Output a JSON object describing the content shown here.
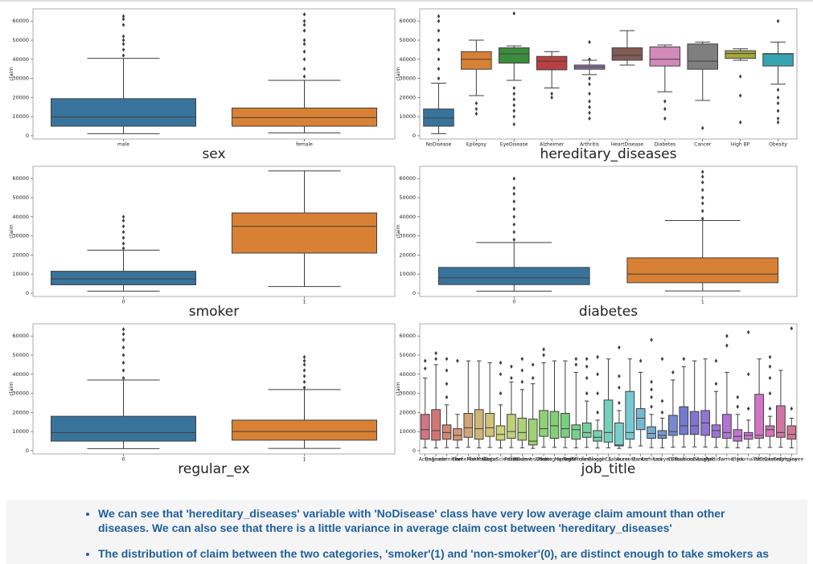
{
  "chart_data": [
    {
      "type": "box",
      "xlabel": "sex",
      "ylabel": "claim",
      "categories": [
        "male",
        "female"
      ],
      "min": [
        1100,
        1500
      ],
      "q1": [
        5000,
        5000
      ],
      "median": [
        9800,
        9500
      ],
      "q3": [
        19400,
        14500
      ],
      "max": [
        40500,
        29000
      ],
      "outliers": [
        [
          42000,
          45000,
          48000,
          50000,
          52000,
          58000,
          61000,
          62500
        ],
        [
          31000,
          35000,
          40000,
          44000,
          48000,
          50000,
          55000,
          58000,
          60000,
          63500
        ]
      ],
      "colors": [
        "#3274a1",
        "#e1812c"
      ],
      "ylim": [
        -1700,
        66400
      ],
      "yticks": [
        0,
        10000,
        20000,
        30000,
        40000,
        50000,
        60000
      ]
    },
    {
      "type": "box",
      "xlabel": "hereditary_diseases",
      "ylabel": "claim",
      "categories": [
        "NoDisease",
        "Epilepsy",
        "EyeDisease",
        "Alzheimer",
        "Arthritis",
        "HeartDisease",
        "Diabetes",
        "Cancer",
        "High BP",
        "Obesity"
      ],
      "min": [
        1100,
        21000,
        29000,
        25000,
        32000,
        37000,
        23000,
        18500,
        39500,
        27000
      ],
      "q1": [
        5000,
        34800,
        38000,
        34500,
        34800,
        39500,
        36500,
        34800,
        40500,
        36500
      ],
      "median": [
        9300,
        40000,
        42800,
        39000,
        36000,
        42000,
        40000,
        39000,
        43000,
        42800
      ],
      "q3": [
        14000,
        44000,
        46000,
        41500,
        37000,
        46000,
        46500,
        48000,
        44500,
        43000
      ],
      "max": [
        27500,
        50000,
        47000,
        44000,
        39500,
        55000,
        47500,
        49000,
        45500,
        49000
      ],
      "outliers": [
        [
          30000,
          35000,
          40000,
          45000,
          50000,
          55000,
          60000,
          62500
        ],
        [
          11500,
          14000,
          17000
        ],
        [
          6000,
          10000,
          13000,
          16000,
          19000,
          22000,
          25000,
          64000
        ],
        [
          20000,
          22000
        ],
        [
          9000,
          12000,
          15000,
          18000,
          22000,
          27000,
          30000,
          40000,
          49000
        ],
        [],
        [
          9000,
          14000,
          18000
        ],
        [
          4000
        ],
        [
          7000,
          21000,
          31000
        ],
        [
          7000,
          9000,
          13000,
          17000,
          20000,
          24000,
          60000
        ]
      ],
      "colors": [
        "#3274a1",
        "#e1812c",
        "#3a923a",
        "#c03d3e",
        "#9372b2",
        "#845b53",
        "#d684bd",
        "#7f7f7f",
        "#a9aa35",
        "#2ea8b6"
      ],
      "ylim": [
        -1700,
        66400
      ],
      "yticks": [
        0,
        10000,
        20000,
        30000,
        40000,
        50000,
        60000
      ]
    },
    {
      "type": "box",
      "xlabel": "smoker",
      "ylabel": "claim",
      "categories": [
        "0",
        "1"
      ],
      "min": [
        1100,
        3500
      ],
      "q1": [
        4400,
        21000
      ],
      "median": [
        7500,
        35000
      ],
      "q3": [
        11500,
        42000
      ],
      "max": [
        22500,
        64000
      ],
      "outliers": [
        [
          23500,
          26000,
          29000,
          32000,
          35000,
          38000,
          40000
        ],
        []
      ],
      "colors": [
        "#3274a1",
        "#e1812c"
      ],
      "ylim": [
        -1700,
        66400
      ],
      "yticks": [
        0,
        10000,
        20000,
        30000,
        40000,
        50000,
        60000
      ]
    },
    {
      "type": "box",
      "xlabel": "diabetes",
      "ylabel": "claim",
      "categories": [
        "0",
        "1"
      ],
      "min": [
        1100,
        1200
      ],
      "q1": [
        4500,
        5500
      ],
      "median": [
        8000,
        10000
      ],
      "q3": [
        13500,
        18500
      ],
      "max": [
        26500,
        38000
      ],
      "outliers": [
        [
          28000,
          32000,
          36000,
          40000,
          44000,
          48000,
          52000,
          55000,
          60000
        ],
        [
          39000,
          43000,
          47000,
          50000,
          54000,
          58000,
          61000,
          63500
        ]
      ],
      "colors": [
        "#3274a1",
        "#e1812c"
      ],
      "ylim": [
        -1700,
        66400
      ],
      "yticks": [
        0,
        10000,
        20000,
        30000,
        40000,
        50000,
        60000
      ]
    },
    {
      "type": "box",
      "xlabel": "regular_ex",
      "ylabel": "claim",
      "categories": [
        "0",
        "1"
      ],
      "min": [
        1100,
        1200
      ],
      "q1": [
        5000,
        5500
      ],
      "median": [
        9500,
        10000
      ],
      "q3": [
        18000,
        16000
      ],
      "max": [
        37000,
        32000
      ],
      "outliers": [
        [
          38000,
          42000,
          46000,
          50000,
          54000,
          58000,
          61000,
          63500
        ],
        [
          33000,
          36000,
          39000,
          42000,
          45000,
          47000,
          49000
        ]
      ],
      "colors": [
        "#3274a1",
        "#e1812c"
      ],
      "ylim": [
        -1700,
        66400
      ],
      "yticks": [
        0,
        10000,
        20000,
        30000,
        40000,
        50000,
        60000
      ]
    },
    {
      "type": "box",
      "xlabel": "job_title",
      "ylabel": "claim",
      "categories": [
        "Actor",
        "Engineer",
        "Academician",
        "Chef",
        "HomeMakers",
        "FilmMaker",
        "Singer",
        "DataScientist",
        "Police",
        "Student",
        "Buisnessman",
        "Doctor",
        "Photographer",
        "Manager",
        "Technician",
        "ITProfessional",
        "Blogger",
        "CA",
        "Labourer",
        "Accountant",
        "Dancer",
        "Architect",
        "Lawyer",
        "CEO",
        "Beautician",
        "FashionDesigner",
        "Analyst",
        "Politician",
        "Farmer",
        "Clerk",
        "Journalist",
        "Pilot",
        "Cricketer",
        "GovEmployee",
        "Employee"
      ],
      "min": [
        1500,
        1400,
        1600,
        1500,
        1800,
        1500,
        1700,
        1400,
        1600,
        1500,
        1200,
        1800,
        1700,
        1600,
        1500,
        1700,
        1400,
        1500,
        1200,
        1600,
        2500,
        1600,
        1500,
        1800,
        1900,
        2000,
        1900,
        1700,
        1600,
        1500,
        1500,
        1600,
        1700,
        1800,
        1500
      ],
      "q1": [
        6000,
        5500,
        6000,
        5500,
        7000,
        6000,
        7500,
        5500,
        6500,
        5500,
        3000,
        7500,
        6500,
        7000,
        6000,
        7000,
        5000,
        4500,
        2500,
        6000,
        11000,
        6500,
        6500,
        8000,
        8500,
        8500,
        8000,
        7000,
        6500,
        5000,
        6000,
        6500,
        7500,
        7000,
        6000
      ],
      "median": [
        11000,
        10500,
        9500,
        8000,
        12000,
        11500,
        12000,
        8500,
        10000,
        9500,
        5000,
        11500,
        13000,
        11500,
        11000,
        9500,
        7000,
        9500,
        3000,
        9500,
        17000,
        9000,
        8000,
        10000,
        13000,
        13000,
        14500,
        10500,
        9500,
        7500,
        8000,
        8000,
        11000,
        9500,
        8500
      ],
      "q3": [
        19000,
        21500,
        13500,
        11500,
        19500,
        21500,
        19500,
        13000,
        19000,
        17000,
        16500,
        21000,
        20500,
        19500,
        13500,
        14500,
        10500,
        26500,
        14500,
        31000,
        22000,
        12500,
        10500,
        18500,
        23000,
        20500,
        21000,
        13500,
        19000,
        11000,
        9500,
        29500,
        13000,
        23500,
        13000
      ],
      "max": [
        38000,
        45000,
        24000,
        19000,
        47000,
        47000,
        46000,
        24000,
        36000,
        32000,
        35000,
        46000,
        47000,
        47000,
        41000,
        26000,
        16000,
        48000,
        21000,
        48000,
        41000,
        19000,
        17000,
        37000,
        44000,
        47000,
        48000,
        31000,
        41000,
        19000,
        16000,
        48000,
        18000,
        42000,
        17000
      ],
      "outliers": [
        [
          43000,
          47000
        ],
        [
          48000,
          51000
        ],
        [
          28000,
          35000,
          42000,
          48000
        ],
        [
          47000
        ],
        [],
        [],
        [],
        [
          30000,
          40000,
          46000
        ],
        [
          38000,
          44000
        ],
        [
          36000,
          42000,
          48000
        ],
        [
          38000,
          45000
        ],
        [
          50000,
          53000
        ],
        [],
        [],
        [
          45000,
          48000
        ],
        [
          30000,
          38000,
          44000,
          48000
        ],
        [
          20000,
          30000,
          40000,
          49000
        ],
        [],
        [
          25000,
          33000,
          39000,
          54000
        ],
        [],
        [
          47000
        ],
        [
          23000,
          28000,
          32000,
          36000,
          58000
        ],
        [
          20000,
          26000,
          48000
        ],
        [
          41000
        ],
        [
          48000
        ],
        [],
        [],
        [
          35000,
          47000
        ],
        [
          55000,
          60000
        ],
        [
          23000,
          28000
        ],
        [
          22000,
          40000,
          62000
        ],
        [],
        [
          22000,
          30000,
          38000,
          44000,
          49000
        ],
        [],
        [
          22000,
          64000
        ]
      ],
      "palette": "husl",
      "ylim": [
        -1700,
        66400
      ],
      "yticks": [
        0,
        10000,
        20000,
        30000,
        40000,
        50000,
        60000
      ]
    }
  ],
  "notes": [
    "We can see that 'hereditary_diseases' variable with 'NoDisease' class have very low average claim amount than other diseases. We can also see that there is a little variance in average claim cost between 'hereditary_diseases'",
    "The distribution of claim between the two categories, 'smoker'(1) and 'non-smoker'(0), are distinct enough to take smokers as"
  ]
}
